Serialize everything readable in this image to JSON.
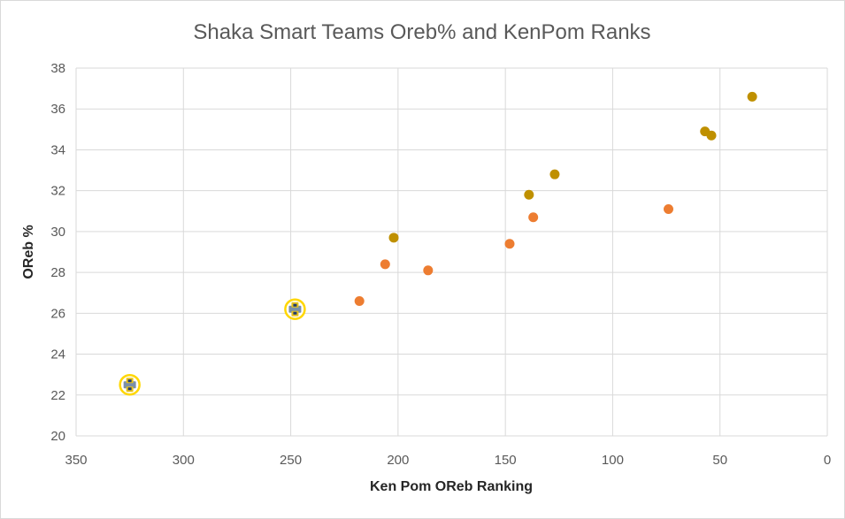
{
  "chart_data": {
    "type": "scatter",
    "title": "Shaka Smart Teams Oreb% and KenPom Ranks",
    "xlabel": "Ken Pom OReb Ranking",
    "ylabel": "OReb %",
    "xlim": [
      0,
      350
    ],
    "x_reversed": true,
    "ylim": [
      20,
      38
    ],
    "x_ticks": [
      350,
      300,
      250,
      200,
      150,
      100,
      50,
      0
    ],
    "y_ticks": [
      20,
      22,
      24,
      26,
      28,
      30,
      32,
      34,
      36,
      38
    ],
    "grid": true,
    "legend": "none",
    "series": [
      {
        "color": "#bf9000",
        "points": [
          {
            "x": 202,
            "y": 29.7
          },
          {
            "x": 139,
            "y": 31.8
          },
          {
            "x": 127,
            "y": 32.8
          },
          {
            "x": 57,
            "y": 34.9
          },
          {
            "x": 54,
            "y": 34.7
          },
          {
            "x": 35,
            "y": 36.6
          }
        ]
      },
      {
        "color": "#ed7d31",
        "points": [
          {
            "x": 218,
            "y": 26.6
          },
          {
            "x": 206,
            "y": 28.4
          },
          {
            "x": 186,
            "y": 28.1
          },
          {
            "x": 148,
            "y": 29.4
          },
          {
            "x": 137,
            "y": 30.7
          },
          {
            "x": 74,
            "y": 31.1
          }
        ]
      },
      {
        "color": "#ffd700",
        "marker": "logo-icon",
        "points": [
          {
            "x": 248,
            "y": 26.2
          },
          {
            "x": 325,
            "y": 22.5
          }
        ]
      }
    ]
  }
}
